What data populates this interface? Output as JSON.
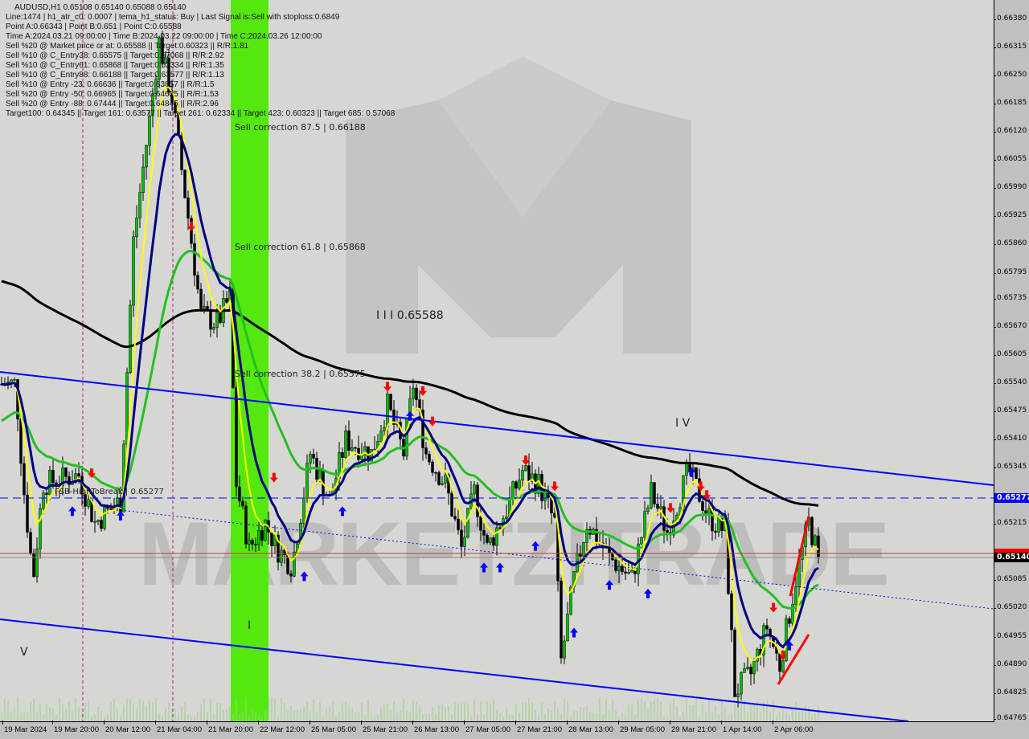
{
  "header": {
    "title": "AUDUSD,H1  0.65108 0.65140 0.65088 0.65140",
    "lines": [
      "Line:1474 | h1_atr_c0: 0.0007 | tema_h1_status: Buy | Last Signal is:Sell with stoploss:0.6849",
      "Point A:0.66343 | Point B:0.651 | Point C:0.65588",
      "Time A:2024.03.21 09:00:00 | Time B:2024.03.22 09:00:00 | Time C:2024.03.26 12:00:00",
      "Sell %20 @ Market price or at: 0.65588 || Target:0.60323 || R/R:1.81",
      "Sell %10 @ C_Entry38: 0.65575 || Target:0.57068 || R/R:2.92",
      "Sell %10 @ C_Entry61: 0.65868 || Target:0.62334 || R/R:1.35",
      "Sell %10 @ C_Entry88: 0.66188 || Target:0.63577 || R/R:1.13",
      "Sell %10 @ Entry -23: 0.66636 || Target:0.63857 || R/R:1.5",
      "Sell %20 @ Entry -50: 0.66965 || Target:0.64625 || R/R:1.53",
      "Sell %20 @ Entry -88: 0.67444 || Target:0.64845 || R/R:2.96",
      "Target100: 0.64345 || Target 161: 0.63577 || Target 261: 0.62334 || Target 423: 0.60323 || Target 685: 0.57068"
    ]
  },
  "annotations": {
    "sell_875": "Sell correction 87.5 | 0.66188",
    "sell_618": "Sell correction 61.8 | 0.65868",
    "sell_382": "Sell correction 38.2 | 0.65575",
    "wave_iii": "I I I  0.65588",
    "wave_iv": "I V",
    "wave_i": "I",
    "wave_v": "V",
    "fsb": "FSB-HighToBreak | 0.65277",
    "watermark": "MARKETZITRADE"
  },
  "colors": {
    "background": "#d6d6d3",
    "bull": "#00c000",
    "bear": "#000000",
    "trendline": "#0000ff",
    "correction_zone": "#55e80f",
    "signal_up": "#0000ff",
    "signal_down": "#ff0000",
    "ma_black": "#000000",
    "ma_navy": "#000080",
    "ma_green": "#22c022",
    "ma_yellow": "#ffff00"
  },
  "chart_data": {
    "type": "candlestick",
    "symbol": "AUDUSD",
    "timeframe": "H1",
    "ohlc_last": {
      "open": 0.65108,
      "high": 0.6514,
      "low": 0.65088,
      "close": 0.6514
    },
    "ylim": [
      0.64765,
      0.6638
    ],
    "y_ticks": [
      "0.66380",
      "0.66315",
      "0.66250",
      "0.66185",
      "0.66120",
      "0.66055",
      "0.65990",
      "0.65925",
      "0.65860",
      "0.65795",
      "0.65735",
      "0.65670",
      "0.65605",
      "0.65540",
      "0.65475",
      "0.65410",
      "0.65345",
      "0.65277",
      "0.65215",
      "0.65140",
      "0.65085",
      "0.65020",
      "0.64955",
      "0.64890",
      "0.64825",
      "0.64765"
    ],
    "x_ticks": [
      "19 Mar 2024",
      "19 Mar 20:00",
      "20 Mar 12:00",
      "21 Mar 04:00",
      "21 Mar 20:00",
      "22 Mar 12:00",
      "25 Mar 05:00",
      "25 Mar 21:00",
      "26 Mar 13:00",
      "27 Mar 05:00",
      "27 Mar 21:00",
      "28 Mar 13:00",
      "29 Mar 05:00",
      "29 Mar 21:00",
      "1 Apr 14:00",
      "2 Apr 06:00"
    ],
    "price_labels": {
      "fsb_level": "0.65277",
      "current": "0.65140"
    },
    "close_path": [
      {
        "time": "19 Mar 05:00",
        "price": 0.6554
      },
      {
        "time": "19 Mar 08:00",
        "price": 0.6531
      },
      {
        "time": "19 Mar 12:00",
        "price": 0.6509
      },
      {
        "time": "19 Mar 16:00",
        "price": 0.6531
      },
      {
        "time": "20 Mar 04:00",
        "price": 0.6533
      },
      {
        "time": "20 Mar 09:00",
        "price": 0.6522
      },
      {
        "time": "20 Mar 17:00",
        "price": 0.6527
      },
      {
        "time": "20 Mar 21:00",
        "price": 0.6587
      },
      {
        "time": "21 Mar 02:00",
        "price": 0.6615
      },
      {
        "time": "21 Mar 05:00",
        "price": 0.6633
      },
      {
        "time": "21 Mar 09:00",
        "price": 0.662
      },
      {
        "time": "21 Mar 15:00",
        "price": 0.6587
      },
      {
        "time": "21 Mar 18:00",
        "price": 0.657
      },
      {
        "time": "21 Mar 23:00",
        "price": 0.6568
      },
      {
        "time": "22 Mar 03:00",
        "price": 0.6574
      },
      {
        "time": "22 Mar 05:00",
        "price": 0.6531
      },
      {
        "time": "22 Mar 09:00",
        "price": 0.6516
      },
      {
        "time": "22 Mar 14:00",
        "price": 0.6522
      },
      {
        "time": "22 Mar 18:00",
        "price": 0.6516
      },
      {
        "time": "22 Mar 23:00",
        "price": 0.6512
      },
      {
        "time": "25 Mar 05:00",
        "price": 0.6538
      },
      {
        "time": "25 Mar 11:00",
        "price": 0.6527
      },
      {
        "time": "25 Mar 16:00",
        "price": 0.6541
      },
      {
        "time": "26 Mar 00:00",
        "price": 0.6538
      },
      {
        "time": "26 Mar 05:00",
        "price": 0.6549
      },
      {
        "time": "26 Mar 10:00",
        "price": 0.6538
      },
      {
        "time": "26 Mar 13:00",
        "price": 0.6554
      },
      {
        "time": "26 Mar 17:00",
        "price": 0.6538
      },
      {
        "time": "26 Mar 23:00",
        "price": 0.6531
      },
      {
        "time": "27 Mar 04:00",
        "price": 0.6516
      },
      {
        "time": "27 Mar 08:00",
        "price": 0.6529
      },
      {
        "time": "27 Mar 12:00",
        "price": 0.6516
      },
      {
        "time": "27 Mar 18:00",
        "price": 0.6525
      },
      {
        "time": "27 Mar 23:00",
        "price": 0.6534
      },
      {
        "time": "28 Mar 04:00",
        "price": 0.6531
      },
      {
        "time": "28 Mar 09:00",
        "price": 0.6522
      },
      {
        "time": "28 Mar 11:00",
        "price": 0.649
      },
      {
        "time": "28 Mar 15:00",
        "price": 0.6509
      },
      {
        "time": "28 Mar 19:00",
        "price": 0.6522
      },
      {
        "time": "29 Mar 02:00",
        "price": 0.6514
      },
      {
        "time": "29 Mar 09:00",
        "price": 0.6509
      },
      {
        "time": "29 Mar 15:00",
        "price": 0.6529
      },
      {
        "time": "29 Mar 20:00",
        "price": 0.652
      },
      {
        "time": "1 Apr 03:00",
        "price": 0.6534
      },
      {
        "time": "1 Apr 10:00",
        "price": 0.6523
      },
      {
        "time": "1 Apr 15:00",
        "price": 0.652
      },
      {
        "time": "1 Apr 18:00",
        "price": 0.6483
      },
      {
        "time": "1 Apr 23:00",
        "price": 0.6487
      },
      {
        "time": "2 Apr 04:00",
        "price": 0.6498
      },
      {
        "time": "2 Apr 08:00",
        "price": 0.6489
      },
      {
        "time": "2 Apr 13:00",
        "price": 0.6509
      },
      {
        "time": "2 Apr 17:00",
        "price": 0.6522
      },
      {
        "time": "2 Apr 20:00",
        "price": 0.6514
      }
    ],
    "signals": [
      {
        "dir": "down",
        "time": "20 Mar 08:00",
        "price": 0.6533
      },
      {
        "dir": "down",
        "time": "21 Mar 15:00",
        "price": 0.659
      },
      {
        "dir": "down",
        "time": "22 Mar 17:00",
        "price": 0.6532
      },
      {
        "dir": "down",
        "time": "26 Mar 05:00",
        "price": 0.6553
      },
      {
        "dir": "down",
        "time": "26 Mar 16:00",
        "price": 0.6552
      },
      {
        "dir": "down",
        "time": "26 Mar 19:00",
        "price": 0.6545
      },
      {
        "dir": "down",
        "time": "28 Mar 00:00",
        "price": 0.6536
      },
      {
        "dir": "down",
        "time": "28 Mar 09:00",
        "price": 0.653
      },
      {
        "dir": "down",
        "time": "29 Mar 21:00",
        "price": 0.6525
      },
      {
        "dir": "down",
        "time": "1 Apr 07:00",
        "price": 0.653
      },
      {
        "dir": "down",
        "time": "1 Apr 09:00",
        "price": 0.6528
      },
      {
        "dir": "down",
        "time": "2 Apr 06:00",
        "price": 0.6502
      },
      {
        "dir": "down",
        "time": "2 Apr 09:00",
        "price": 0.6491
      },
      {
        "dir": "up",
        "time": "20 Mar 02:00",
        "price": 0.6525
      },
      {
        "dir": "up",
        "time": "20 Mar 17:00",
        "price": 0.6524
      },
      {
        "dir": "up",
        "time": "25 Mar 03:00",
        "price": 0.651
      },
      {
        "dir": "up",
        "time": "25 Mar 15:00",
        "price": 0.6525
      },
      {
        "dir": "up",
        "time": "26 Mar 12:00",
        "price": 0.6547
      },
      {
        "dir": "up",
        "time": "27 Mar 11:00",
        "price": 0.6512
      },
      {
        "dir": "up",
        "time": "27 Mar 16:00",
        "price": 0.6512
      },
      {
        "dir": "up",
        "time": "28 Mar 03:00",
        "price": 0.6517
      },
      {
        "dir": "up",
        "time": "28 Mar 15:00",
        "price": 0.6497
      },
      {
        "dir": "up",
        "time": "29 Mar 02:00",
        "price": 0.6508
      },
      {
        "dir": "up",
        "time": "29 Mar 14:00",
        "price": 0.6506
      },
      {
        "dir": "up",
        "time": "1 Apr 04:00",
        "price": 0.6534
      },
      {
        "dir": "up",
        "time": "2 Apr 11:00",
        "price": 0.6494
      }
    ],
    "grid": false
  }
}
